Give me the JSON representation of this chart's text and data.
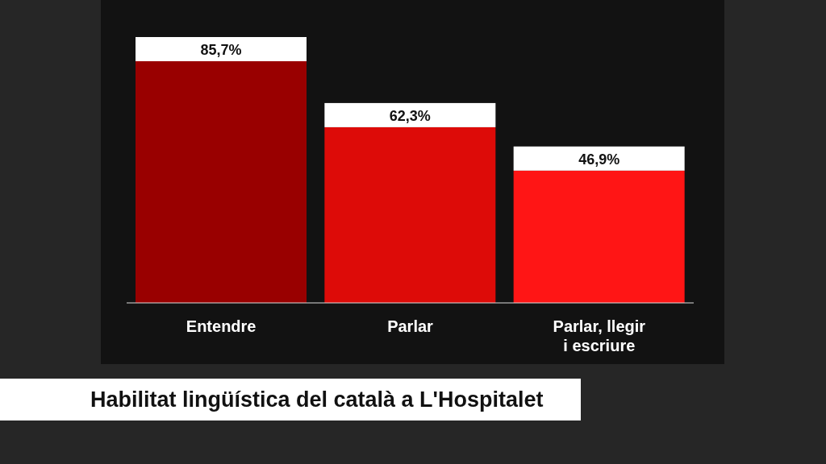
{
  "chart_data": {
    "type": "bar",
    "title": "Habilitat lingüística del català a L'Hospitalet",
    "categories": [
      "Entendre",
      "Parlar",
      "Parlar, llegir i escriure"
    ],
    "values": [
      85.7,
      62.3,
      46.9
    ],
    "colors": [
      "#990000",
      "#dd0b08",
      "#ff1515"
    ],
    "value_labels": [
      "85,7%",
      "62,3%",
      "46,9%"
    ],
    "grid": false,
    "legend": false
  }
}
